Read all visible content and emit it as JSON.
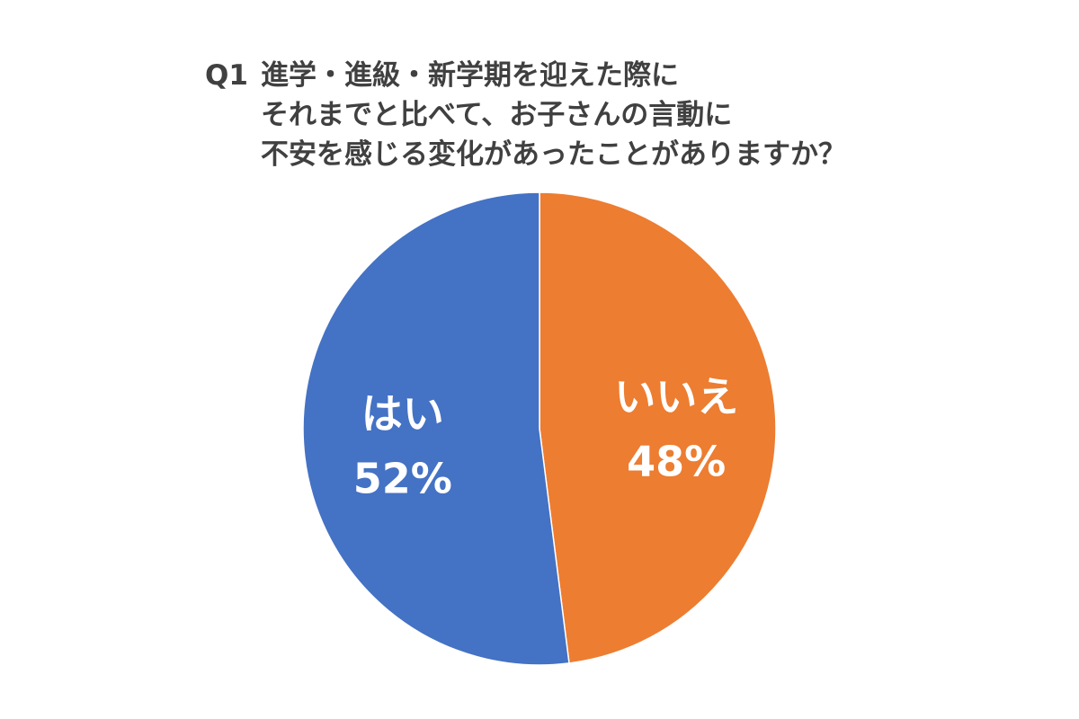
{
  "question": {
    "number": "Q1",
    "lines": [
      "進学・進級・新学期を迎えた際に",
      "それまでと比べて、お子さんの言動に",
      "不安を感じる変化があったことがありますか？"
    ]
  },
  "chart_data": {
    "type": "pie",
    "title": "Q1 進学・進級・新学期を迎えた際に それまでと比べて、お子さんの言動に 不安を感じる変化があったことがありますか？",
    "slices": [
      {
        "label": "はい",
        "value": 52,
        "display": "52%",
        "color": "#4472c4"
      },
      {
        "label": "いいえ",
        "value": 48,
        "display": "48%",
        "color": "#ed7d31"
      }
    ],
    "legend": "none"
  }
}
